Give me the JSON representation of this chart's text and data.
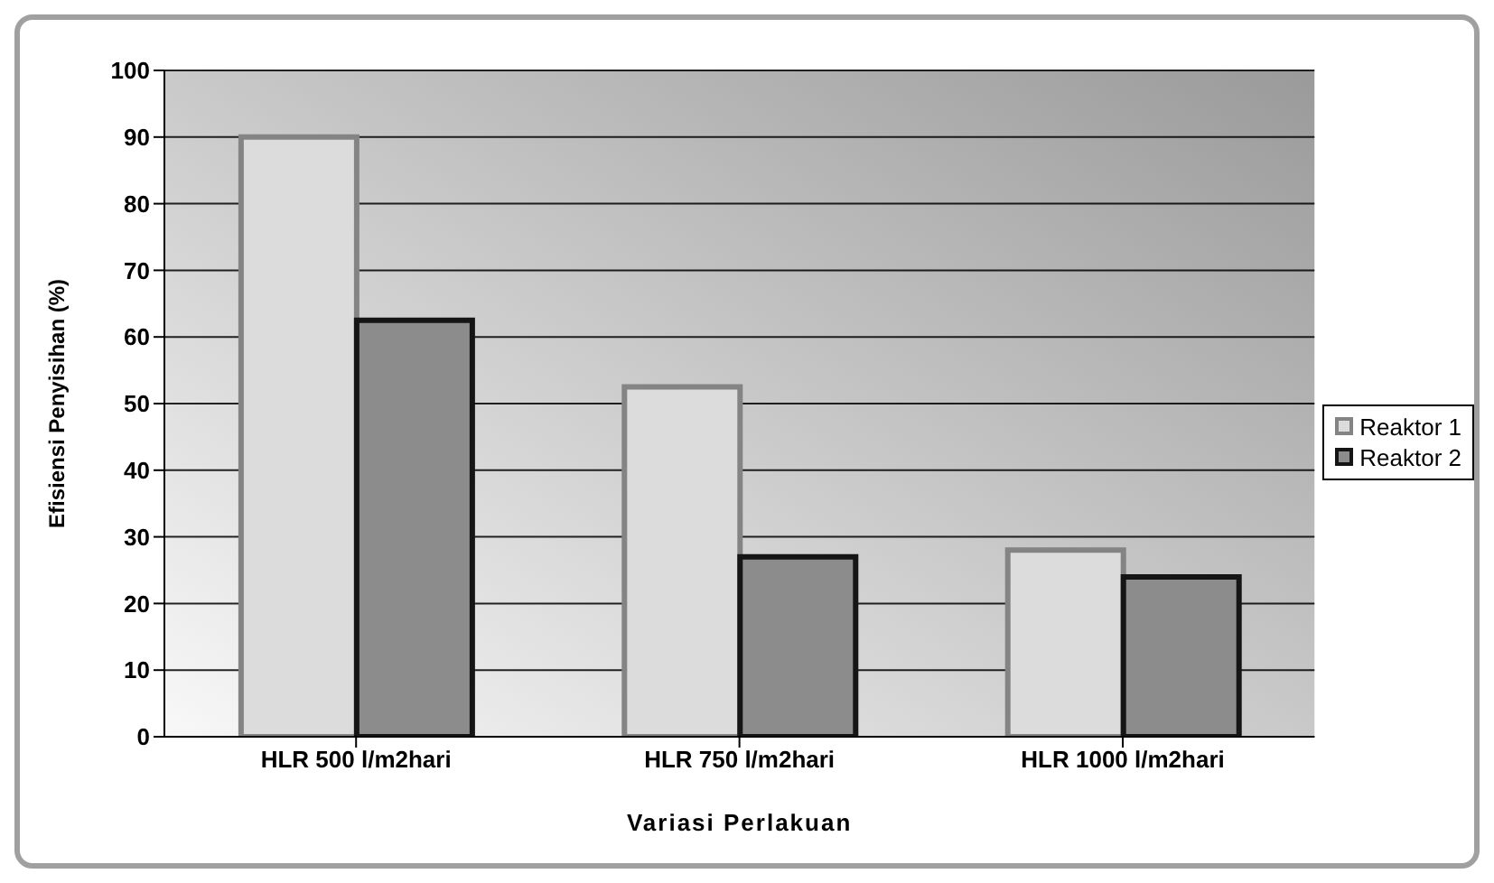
{
  "chart_data": {
    "type": "bar",
    "xlabel": "Variasi Perlakuan",
    "ylabel": "Efisiensi Penyisihan (%)",
    "categories": [
      "HLR 500 l/m2hari",
      "HLR 750 l/m2hari",
      "HLR 1000 l/m2hari"
    ],
    "series": [
      {
        "name": "Reaktor 1",
        "color": "#dcdcdc",
        "values": [
          90,
          52.5,
          28
        ]
      },
      {
        "name": "Reaktor 2",
        "color": "#8c8c8c",
        "values": [
          62.5,
          27,
          24
        ]
      }
    ],
    "ylim": [
      0,
      100
    ],
    "yticks": [
      0,
      10,
      20,
      30,
      40,
      50,
      60,
      70,
      80,
      90,
      100
    ],
    "grid": "y",
    "legend": "right"
  }
}
